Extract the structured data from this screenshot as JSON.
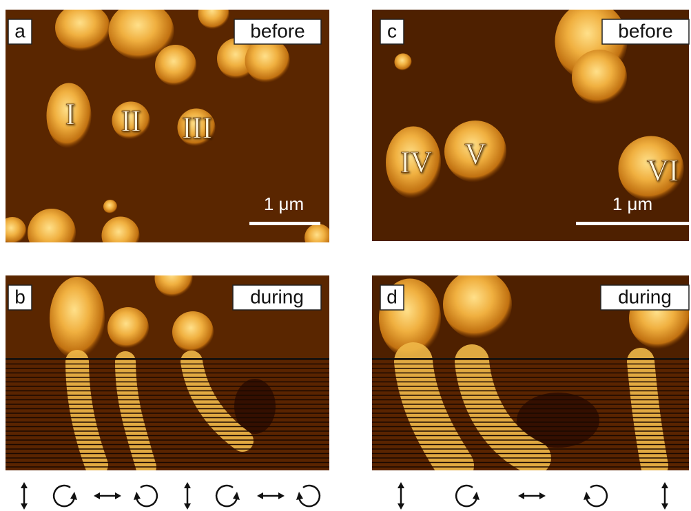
{
  "panels": [
    {
      "label": "a",
      "state": "before",
      "particles": [
        "I",
        "II",
        "III"
      ],
      "scale_bar": "1 μm"
    },
    {
      "label": "c",
      "state": "before",
      "particles": [
        "IV",
        "V",
        "VI"
      ],
      "scale_bar": "1 μm"
    },
    {
      "label": "b",
      "state": "during"
    },
    {
      "label": "d",
      "state": "during"
    }
  ]
}
